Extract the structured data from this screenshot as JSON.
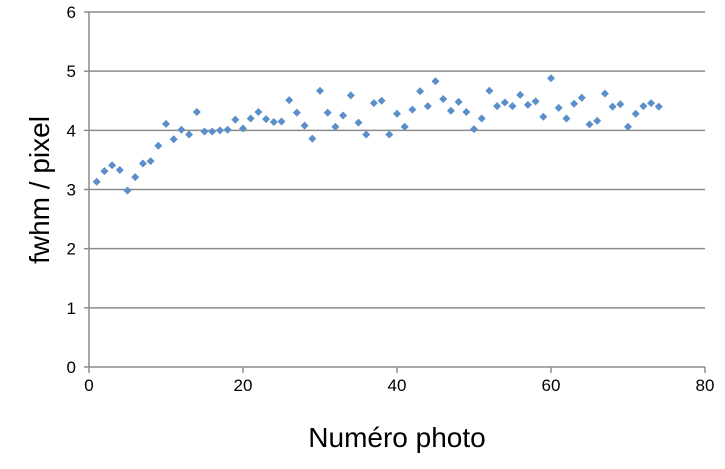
{
  "chart_data": {
    "type": "scatter",
    "title": "",
    "xlabel": "Numéro photo",
    "ylabel": "fwhm / pixel",
    "xlim": [
      0,
      80
    ],
    "ylim": [
      0,
      6
    ],
    "xticks": [
      "0",
      "20",
      "40",
      "60",
      "80"
    ],
    "yticks": [
      "0",
      "1",
      "2",
      "3",
      "4",
      "5",
      "6"
    ],
    "grid": "horizontal",
    "marker": "diamond",
    "color": "#5b8fc9",
    "x": [
      1,
      2,
      3,
      4,
      5,
      6,
      7,
      8,
      9,
      10,
      11,
      12,
      13,
      14,
      15,
      16,
      17,
      18,
      19,
      20,
      21,
      22,
      23,
      24,
      25,
      26,
      27,
      28,
      29,
      30,
      31,
      32,
      33,
      34,
      35,
      36,
      37,
      38,
      39,
      40,
      41,
      42,
      43,
      44,
      45,
      46,
      47,
      48,
      49,
      50,
      51,
      52,
      53,
      54,
      55,
      56,
      57,
      58,
      59,
      60,
      61,
      62,
      63,
      64,
      65,
      66,
      67,
      68,
      69,
      70,
      71,
      72,
      73,
      74
    ],
    "y": [
      3.13,
      3.31,
      3.41,
      3.33,
      2.98,
      3.21,
      3.44,
      3.48,
      3.74,
      4.11,
      3.85,
      4.01,
      3.93,
      4.31,
      3.98,
      3.98,
      4.0,
      4.01,
      4.18,
      4.03,
      4.2,
      4.31,
      4.19,
      4.14,
      4.15,
      4.51,
      4.3,
      4.08,
      3.86,
      4.67,
      4.3,
      4.06,
      4.25,
      4.59,
      4.13,
      3.93,
      4.46,
      4.5,
      3.93,
      4.28,
      4.06,
      4.35,
      4.66,
      4.41,
      4.83,
      4.53,
      4.33,
      4.48,
      4.31,
      4.02,
      4.2,
      4.67,
      4.41,
      4.47,
      4.41,
      4.6,
      4.43,
      4.49,
      4.23,
      4.88,
      4.38,
      4.2,
      4.45,
      4.55,
      4.1,
      4.16,
      4.62,
      4.4,
      4.44,
      4.06,
      4.28,
      4.41,
      4.46,
      4.4
    ]
  }
}
